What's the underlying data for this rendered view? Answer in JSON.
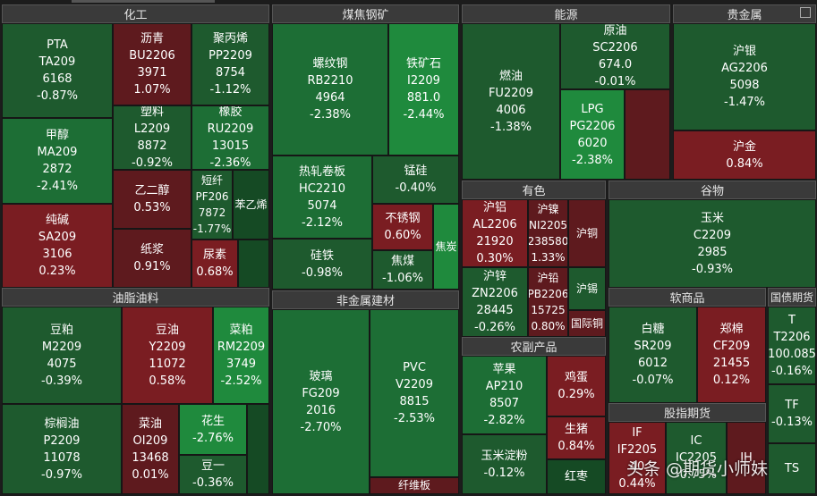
{
  "sectors": {
    "chem": "化工",
    "coal": "煤焦钢矿",
    "energy": "能源",
    "precious": "贵金属",
    "oil": "油脂油料",
    "nonmetal": "非金属建材",
    "nonferrous": "有色",
    "grain": "谷物",
    "soft": "软商品",
    "agri": "农副产品",
    "index": "股指期货",
    "bond": "国债期货"
  },
  "tiles": {
    "pta": {
      "name": "PTA",
      "code": "TA209",
      "price": "6168",
      "change": "-0.87%"
    },
    "bitumen": {
      "name": "沥青",
      "code": "BU2206",
      "price": "3971",
      "change": "1.07%"
    },
    "pp": {
      "name": "聚丙烯",
      "code": "PP2209",
      "price": "8754",
      "change": "-1.12%"
    },
    "plastic": {
      "name": "塑料",
      "code": "L2209",
      "price": "8872",
      "change": "-0.92%"
    },
    "rubber": {
      "name": "橡胶",
      "code": "RU2209",
      "price": "13015",
      "change": "-2.36%"
    },
    "methanol": {
      "name": "甲醇",
      "code": "MA209",
      "price": "2872",
      "change": "-2.41%"
    },
    "eg": {
      "name": "乙二醇",
      "change": "0.53%"
    },
    "pf": {
      "name": "短纤",
      "code": "PF206",
      "price": "7872",
      "change": "-1.77%"
    },
    "styrene": {
      "name": "苯乙烯"
    },
    "soda": {
      "name": "纯碱",
      "code": "SA209",
      "price": "3106",
      "change": "0.23%"
    },
    "pulp": {
      "name": "纸浆",
      "change": "0.91%"
    },
    "urea": {
      "name": "尿素",
      "change": "0.68%"
    },
    "rebar": {
      "name": "螺纹钢",
      "code": "RB2210",
      "price": "4964",
      "change": "-2.38%"
    },
    "iron": {
      "name": "铁矿石",
      "code": "I2209",
      "price": "881.0",
      "change": "-2.44%"
    },
    "hc": {
      "name": "热轧卷板",
      "code": "HC2210",
      "price": "5074",
      "change": "-2.12%"
    },
    "mn": {
      "name": "锰硅",
      "change": "-0.40%"
    },
    "ss": {
      "name": "不锈钢",
      "change": "0.60%"
    },
    "coke": {
      "name": "焦炭"
    },
    "si": {
      "name": "硅铁",
      "change": "-0.98%"
    },
    "jm": {
      "name": "焦煤",
      "change": "-1.06%"
    },
    "fu": {
      "name": "燃油",
      "code": "FU2209",
      "price": "4006",
      "change": "-1.38%"
    },
    "sc": {
      "name": "原油",
      "code": "SC2206",
      "price": "674.0",
      "change": "-0.01%"
    },
    "lpg": {
      "name": "LPG",
      "code": "PG2206",
      "price": "6020",
      "change": "-2.38%"
    },
    "ag": {
      "name": "沪银",
      "code": "AG2206",
      "price": "5098",
      "change": "-1.47%"
    },
    "au": {
      "name": "沪金",
      "change": "0.84%"
    },
    "meal": {
      "name": "豆粕",
      "code": "M2209",
      "price": "4075",
      "change": "-0.39%"
    },
    "soyoil": {
      "name": "豆油",
      "code": "Y2209",
      "price": "11072",
      "change": "0.58%"
    },
    "rm": {
      "name": "菜粕",
      "code": "RM2209",
      "price": "3749",
      "change": "-2.52%"
    },
    "palm": {
      "name": "棕榈油",
      "code": "P2209",
      "price": "11078",
      "change": "-0.97%"
    },
    "oi": {
      "name": "菜油",
      "code": "OI209",
      "price": "13468",
      "change": "0.01%"
    },
    "peanut": {
      "name": "花生",
      "change": "-2.76%"
    },
    "bean1": {
      "name": "豆一",
      "change": "-0.36%"
    },
    "glass": {
      "name": "玻璃",
      "code": "FG209",
      "price": "2016",
      "change": "-2.70%"
    },
    "pvc": {
      "name": "PVC",
      "code": "V2209",
      "price": "8815",
      "change": "-2.53%"
    },
    "fb": {
      "name": "纤维板"
    },
    "al": {
      "name": "沪铝",
      "code": "AL2206",
      "price": "21920",
      "change": "0.30%"
    },
    "ni": {
      "name": "沪镍",
      "code": "NI2205",
      "price": "238580",
      "change": "1.33%"
    },
    "cu": {
      "name": "沪铜"
    },
    "zn": {
      "name": "沪锌",
      "code": "ZN2206",
      "price": "28445",
      "change": "-0.26%"
    },
    "pb": {
      "name": "沪铅",
      "code": "PB2206",
      "price": "15725",
      "change": "0.80%"
    },
    "sn": {
      "name": "沪锡"
    },
    "bc": {
      "name": "国际铜"
    },
    "corn": {
      "name": "玉米",
      "code": "C2209",
      "price": "2985",
      "change": "-0.93%"
    },
    "sugar": {
      "name": "白糖",
      "code": "SR209",
      "price": "6012",
      "change": "-0.07%"
    },
    "cotton": {
      "name": "郑棉",
      "code": "CF209",
      "price": "21455",
      "change": "0.12%"
    },
    "apple": {
      "name": "苹果",
      "code": "AP210",
      "price": "8507",
      "change": "-2.82%"
    },
    "egg": {
      "name": "鸡蛋",
      "change": "0.29%"
    },
    "hog": {
      "name": "生猪",
      "change": "0.84%"
    },
    "starch": {
      "name": "玉米淀粉",
      "change": "-0.12%"
    },
    "jujube": {
      "name": "红枣"
    },
    "t": {
      "name": "T",
      "code": "T2206",
      "price": "100.085",
      "change": "-0.16%"
    },
    "tf": {
      "name": "TF",
      "change": "-0.13%"
    },
    "tfs": {
      "name": "TS"
    },
    "if": {
      "name": "IF",
      "code": "IF2205",
      "price": "40",
      "change": "0.44%"
    },
    "ic": {
      "name": "IC",
      "code": "IC2205",
      "change": "-0.75%"
    },
    "ih": {
      "name": "IH"
    }
  },
  "watermark": "头条 @期货小师妹"
}
